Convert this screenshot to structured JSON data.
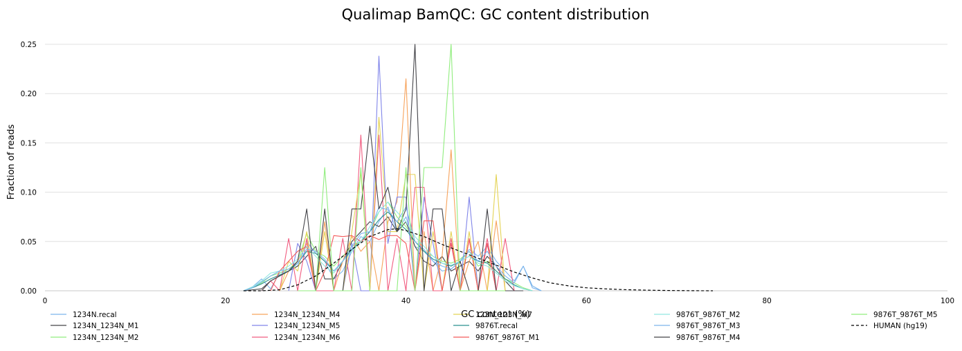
{
  "chart_data": {
    "type": "line",
    "title": "Qualimap BamQC: GC content distribution",
    "xlabel": "GC content (%)",
    "ylabel": "Fraction of reads",
    "xlim": [
      0,
      100
    ],
    "ylim": [
      0,
      0.25
    ],
    "xticks": [
      "0",
      "20",
      "40",
      "60",
      "80",
      "100"
    ],
    "yticks": [
      "0.00",
      "0.05",
      "0.10",
      "0.15",
      "0.20",
      "0.25"
    ],
    "grid": "horizontal",
    "legend_position": "bottom",
    "series": [
      {
        "name": "1234N.recal",
        "color": "#7cb5ec",
        "dash": false,
        "x": [
          22,
          23,
          24,
          25,
          26,
          27,
          28,
          29,
          30,
          31,
          32,
          33,
          34,
          35,
          36,
          37,
          38,
          39,
          40,
          41,
          42,
          43,
          44,
          45,
          46,
          47,
          48,
          49,
          50,
          51,
          52,
          53,
          54,
          55
        ],
        "y": [
          0.0,
          0.004,
          0.012,
          0.002,
          0.018,
          0.02,
          0.025,
          0.05,
          0.038,
          0.03,
          0.012,
          0.02,
          0.04,
          0.055,
          0.05,
          0.07,
          0.085,
          0.06,
          0.075,
          0.045,
          0.04,
          0.03,
          0.02,
          0.022,
          0.03,
          0.042,
          0.035,
          0.045,
          0.03,
          0.02,
          0.01,
          0.025,
          0.005,
          0.0
        ]
      },
      {
        "name": "1234N_1234N_M1",
        "color": "#434348",
        "dash": false,
        "x": [
          22,
          24,
          25,
          26,
          27,
          28,
          29,
          30,
          31,
          32,
          33,
          34,
          35,
          36,
          37,
          38,
          39,
          40,
          41,
          42,
          43,
          44,
          45,
          46,
          47,
          48,
          49,
          50,
          51,
          52
        ],
        "y": [
          0.0,
          0.002,
          0.01,
          0.015,
          0.02,
          0.025,
          0.035,
          0.045,
          0.012,
          0.012,
          0.03,
          0.05,
          0.06,
          0.07,
          0.065,
          0.075,
          0.06,
          0.07,
          0.045,
          0.03,
          0.025,
          0.035,
          0.02,
          0.025,
          0.03,
          0.02,
          0.035,
          0.025,
          0.01,
          0.0
        ]
      },
      {
        "name": "1234N_1234N_M2",
        "color": "#90ed7d",
        "dash": false,
        "x": [
          22,
          23,
          24,
          25,
          26,
          27,
          28,
          29,
          30,
          31,
          32,
          33,
          34,
          35,
          36,
          37,
          38,
          39,
          40,
          41,
          42,
          43,
          44,
          45,
          46,
          47,
          48,
          49,
          50,
          51,
          52,
          53,
          54
        ],
        "y": [
          0.0,
          0.003,
          0.008,
          0.015,
          0.018,
          0.022,
          0.03,
          0.058,
          0.04,
          0.035,
          0.025,
          0.035,
          0.045,
          0.05,
          0.06,
          0.08,
          0.09,
          0.075,
          0.065,
          0.05,
          0.04,
          0.035,
          0.03,
          0.028,
          0.032,
          0.04,
          0.025,
          0.03,
          0.02,
          0.012,
          0.008,
          0.003,
          0.0
        ]
      },
      {
        "name": "1234N_1234N_M4",
        "color": "#f7a35c",
        "dash": false,
        "x": [
          26,
          27,
          28,
          29,
          30,
          31,
          32,
          33,
          34,
          35,
          36,
          37,
          38,
          39,
          40,
          41,
          42,
          43,
          44,
          45,
          46,
          47,
          48,
          49,
          50,
          51,
          52
        ],
        "y": [
          0.0,
          0.02,
          0.03,
          0.048,
          0.0,
          0.07,
          0.0,
          0.03,
          0.055,
          0.04,
          0.05,
          0.0,
          0.07,
          0.09,
          0.215,
          0.0,
          0.06,
          0.0,
          0.035,
          0.143,
          0.0,
          0.03,
          0.05,
          0.0,
          0.071,
          0.0,
          0.0
        ]
      },
      {
        "name": "1234N_1234N_M5",
        "color": "#8085e9",
        "dash": false,
        "x": [
          27,
          28,
          29,
          30,
          31,
          32,
          33,
          34,
          35,
          36,
          37,
          38,
          39,
          40,
          41,
          42,
          43,
          44,
          45,
          46,
          47,
          48,
          49,
          50,
          51,
          52
        ],
        "y": [
          0.0,
          0.048,
          0.03,
          0.0,
          0.0,
          0.0,
          0.0,
          0.048,
          0.0,
          0.0,
          0.238,
          0.048,
          0.095,
          0.095,
          0.0,
          0.095,
          0.048,
          0.0,
          0.048,
          0.0,
          0.095,
          0.0,
          0.048,
          0.0,
          0.0,
          0.0
        ]
      },
      {
        "name": "1234N_1234N_M6",
        "color": "#f15c80",
        "dash": false,
        "x": [
          24,
          25,
          26,
          27,
          28,
          29,
          30,
          31,
          32,
          33,
          34,
          35,
          36,
          37,
          38,
          39,
          40,
          41,
          42,
          43,
          44,
          45,
          46,
          47,
          48,
          49,
          50,
          51,
          52,
          53
        ],
        "y": [
          0.0,
          0.01,
          0.0,
          0.053,
          0.0,
          0.053,
          0.0,
          0.0,
          0.0,
          0.053,
          0.0,
          0.158,
          0.0,
          0.158,
          0.0,
          0.053,
          0.0,
          0.105,
          0.105,
          0.0,
          0.0,
          0.053,
          0.0,
          0.053,
          0.0,
          0.053,
          0.0,
          0.053,
          0.0,
          0.0
        ]
      },
      {
        "name": "123N_123N_M7",
        "color": "#e4d354",
        "dash": false,
        "x": [
          26,
          27,
          28,
          29,
          30,
          31,
          32,
          33,
          34,
          35,
          36,
          37,
          38,
          39,
          40,
          41,
          42,
          43,
          44,
          45,
          46,
          47,
          48,
          49,
          50,
          51,
          52
        ],
        "y": [
          0.0,
          0.03,
          0.02,
          0.06,
          0.0,
          0.06,
          0.0,
          0.0,
          0.06,
          0.12,
          0.0,
          0.176,
          0.06,
          0.06,
          0.118,
          0.118,
          0.0,
          0.06,
          0.0,
          0.06,
          0.0,
          0.06,
          0.0,
          0.0,
          0.118,
          0.0,
          0.0
        ]
      },
      {
        "name": "9876T.recal",
        "color": "#2b908f",
        "dash": false,
        "x": [
          22,
          23,
          24,
          25,
          26,
          27,
          28,
          29,
          30,
          31,
          32,
          33,
          34,
          35,
          36,
          37,
          38,
          39,
          40,
          41,
          42,
          43,
          44,
          45,
          46,
          47,
          48,
          49,
          50,
          51,
          52,
          53,
          54
        ],
        "y": [
          0.0,
          0.003,
          0.007,
          0.012,
          0.016,
          0.02,
          0.028,
          0.04,
          0.038,
          0.03,
          0.02,
          0.03,
          0.042,
          0.05,
          0.06,
          0.072,
          0.08,
          0.07,
          0.062,
          0.05,
          0.04,
          0.032,
          0.028,
          0.025,
          0.03,
          0.035,
          0.03,
          0.028,
          0.02,
          0.012,
          0.006,
          0.002,
          0.0
        ]
      },
      {
        "name": "9876T_9876T_M1",
        "color": "#f45b5b",
        "dash": false,
        "x": [
          25,
          26,
          27,
          28,
          29,
          30,
          31,
          32,
          33,
          34,
          35,
          36,
          37,
          38,
          39,
          40,
          41,
          42,
          43,
          44,
          45,
          46,
          47,
          48,
          49,
          50,
          51,
          52
        ],
        "y": [
          0.0,
          0.02,
          0.03,
          0.04,
          0.045,
          0.0,
          0.02,
          0.056,
          0.055,
          0.056,
          0.05,
          0.056,
          0.052,
          0.056,
          0.056,
          0.048,
          0.0,
          0.071,
          0.071,
          0.0,
          0.048,
          0.0,
          0.052,
          0.0,
          0.048,
          0.0,
          0.0,
          0.0
        ]
      },
      {
        "name": "9876T_9876T_M2",
        "color": "#91e8e1",
        "dash": false,
        "x": [
          22,
          23,
          24,
          25,
          26,
          27,
          28,
          29,
          30,
          31,
          32,
          33,
          34,
          35,
          36,
          37,
          38,
          39,
          40,
          41,
          42,
          43,
          44,
          45,
          46,
          47,
          48,
          49,
          50,
          51,
          52,
          53,
          54
        ],
        "y": [
          0.0,
          0.004,
          0.01,
          0.018,
          0.02,
          0.025,
          0.032,
          0.045,
          0.035,
          0.025,
          0.018,
          0.03,
          0.04,
          0.05,
          0.065,
          0.08,
          0.09,
          0.08,
          0.07,
          0.055,
          0.045,
          0.035,
          0.028,
          0.026,
          0.03,
          0.035,
          0.028,
          0.025,
          0.018,
          0.01,
          0.005,
          0.002,
          0.0
        ]
      },
      {
        "name": "9876T_9876T_M3",
        "color": "#7cb5ec",
        "dash": false,
        "x": [
          22,
          23,
          24,
          25,
          26,
          27,
          28,
          29,
          30,
          31,
          32,
          33,
          34,
          35,
          36,
          37,
          38,
          39,
          40,
          41,
          42,
          43,
          44,
          45,
          46,
          47,
          48,
          49,
          50,
          51,
          52,
          53,
          54,
          55
        ],
        "y": [
          0.0,
          0.003,
          0.009,
          0.015,
          0.02,
          0.022,
          0.028,
          0.042,
          0.04,
          0.032,
          0.02,
          0.03,
          0.045,
          0.058,
          0.06,
          0.085,
          0.082,
          0.07,
          0.085,
          0.05,
          0.042,
          0.03,
          0.025,
          0.022,
          0.03,
          0.04,
          0.03,
          0.04,
          0.025,
          0.015,
          0.008,
          0.025,
          0.003,
          0.0
        ]
      },
      {
        "name": "9876T_9876T_M4",
        "color": "#434348",
        "dash": false,
        "x": [
          24,
          25,
          26,
          27,
          28,
          29,
          30,
          31,
          32,
          33,
          34,
          35,
          36,
          37,
          38,
          39,
          40,
          41,
          42,
          43,
          44,
          45,
          46,
          47,
          48,
          49,
          50,
          51,
          52,
          53
        ],
        "y": [
          0.0,
          0.01,
          0.015,
          0.02,
          0.03,
          0.083,
          0.0,
          0.083,
          0.0,
          0.0,
          0.083,
          0.083,
          0.167,
          0.083,
          0.105,
          0.06,
          0.083,
          0.25,
          0.0,
          0.083,
          0.083,
          0.0,
          0.03,
          0.0,
          0.0,
          0.083,
          0.0,
          0.0,
          0.0,
          0.0
        ]
      },
      {
        "name": "9876T_9876T_M5",
        "color": "#90ed7d",
        "dash": false,
        "x": [
          28,
          29,
          30,
          31,
          32,
          33,
          34,
          35,
          36,
          37,
          38,
          39,
          40,
          41,
          42,
          43,
          44,
          45,
          46,
          47,
          48,
          49,
          50,
          51
        ],
        "y": [
          0.0,
          0.0,
          0.0,
          0.125,
          0.0,
          0.0,
          0.0,
          0.125,
          0.0,
          0.0,
          0.0,
          0.0,
          0.125,
          0.0,
          0.125,
          0.125,
          0.125,
          0.25,
          0.0,
          0.0,
          0.0,
          0.0,
          0.0,
          0.0
        ]
      },
      {
        "name": "HUMAN (hg19)",
        "color": "#000000",
        "dash": true,
        "x": [
          22,
          24,
          26,
          28,
          30,
          32,
          34,
          36,
          38,
          39,
          40,
          42,
          44,
          46,
          48,
          50,
          52,
          54,
          56,
          58,
          60,
          62,
          64,
          66,
          68,
          70,
          72,
          74
        ],
        "y": [
          0.0,
          0.0,
          0.001,
          0.006,
          0.015,
          0.028,
          0.042,
          0.055,
          0.062,
          0.063,
          0.061,
          0.055,
          0.047,
          0.04,
          0.033,
          0.026,
          0.019,
          0.013,
          0.008,
          0.005,
          0.003,
          0.002,
          0.0012,
          0.0008,
          0.0004,
          0.0002,
          0.0001,
          0.0
        ]
      }
    ]
  }
}
